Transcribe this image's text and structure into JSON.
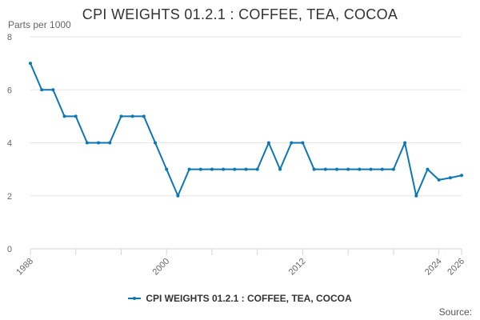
{
  "title": "CPI WEIGHTS 01.2.1 : COFFEE, TEA, COCOA",
  "source_label": "Source:",
  "colors": {
    "series": "#0b77b4",
    "grid": "#e6e6e6",
    "axis": "#ccd6eb",
    "tick_text": "#666666"
  },
  "chart_data": {
    "type": "line",
    "title": "CPI WEIGHTS 01.2.1 : COFFEE, TEA, COCOA",
    "ylabel": "Parts per 1000",
    "xlabel": "",
    "ylim": [
      0,
      8
    ],
    "yticks": [
      0,
      2,
      4,
      6,
      8
    ],
    "xlim": [
      1988,
      2026
    ],
    "xticks": [
      1988,
      2000,
      2012,
      2024,
      2026
    ],
    "grid": true,
    "legend_position": "bottom",
    "series": [
      {
        "name": "CPI WEIGHTS 01.2.1 : COFFEE, TEA, COCOA",
        "x": [
          1988,
          1989,
          1990,
          1991,
          1992,
          1993,
          1994,
          1995,
          1996,
          1997,
          1998,
          1999,
          2000,
          2001,
          2002,
          2003,
          2004,
          2005,
          2006,
          2007,
          2008,
          2009,
          2010,
          2011,
          2012,
          2013,
          2014,
          2015,
          2016,
          2017,
          2018,
          2019,
          2020,
          2021,
          2022,
          2023,
          2024,
          2025,
          2026
        ],
        "values": [
          7,
          6,
          6,
          5,
          5,
          4,
          4,
          4,
          5,
          5,
          5,
          4,
          3,
          2,
          3,
          3,
          3,
          3,
          3,
          3,
          3,
          4,
          3,
          4,
          4,
          3,
          3,
          3,
          3,
          3,
          3,
          3,
          3,
          4,
          2,
          3,
          2.6,
          2.68,
          2.77
        ]
      }
    ]
  }
}
